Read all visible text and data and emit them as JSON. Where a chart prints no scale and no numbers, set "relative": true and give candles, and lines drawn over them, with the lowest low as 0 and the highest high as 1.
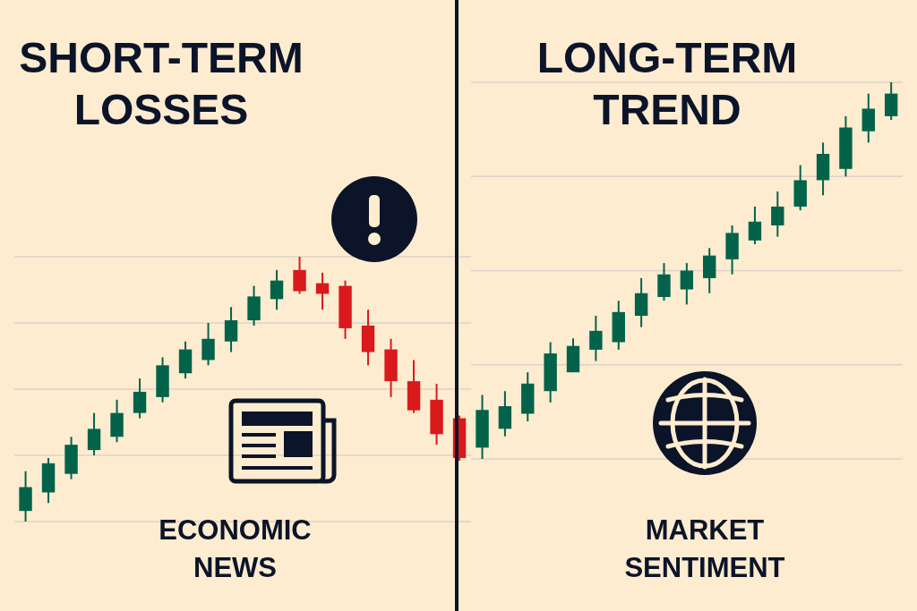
{
  "chart_data": [
    {
      "type": "candlestick",
      "title": "SHORT-TERM LOSSES",
      "relative": true,
      "grid": true,
      "annotations": [
        "ECONOMIC NEWS"
      ],
      "categories": [
        null,
        null,
        null,
        null,
        null,
        null,
        null,
        null,
        null,
        null,
        null,
        null,
        null,
        null,
        null,
        null,
        null,
        null,
        null,
        null
      ],
      "ohlc": [
        [
          0.04,
          0.19,
          0,
          0.13
        ],
        [
          0.11,
          0.24,
          0.07,
          0.22
        ],
        [
          0.18,
          0.32,
          0.16,
          0.29
        ],
        [
          0.27,
          0.41,
          0.25,
          0.35
        ],
        [
          0.32,
          0.46,
          0.3,
          0.41
        ],
        [
          0.41,
          0.54,
          0.39,
          0.49
        ],
        [
          0.47,
          0.62,
          0.45,
          0.59
        ],
        [
          0.56,
          0.68,
          0.54,
          0.65
        ],
        [
          0.61,
          0.75,
          0.59,
          0.69
        ],
        [
          0.68,
          0.81,
          0.64,
          0.76
        ],
        [
          0.76,
          0.89,
          0.74,
          0.85
        ],
        [
          0.84,
          0.95,
          0.8,
          0.91
        ],
        [
          0.95,
          1,
          0.86,
          0.87
        ],
        [
          0.9,
          0.94,
          0.8,
          0.86
        ],
        [
          0.89,
          0.91,
          0.69,
          0.73
        ],
        [
          0.74,
          0.8,
          0.59,
          0.64
        ],
        [
          0.65,
          0.69,
          0.47,
          0.53
        ],
        [
          0.53,
          0.61,
          0.41,
          0.42
        ],
        [
          0.46,
          0.52,
          0.29,
          0.33
        ],
        [
          0.39,
          0.4,
          0.23,
          0.24
        ]
      ],
      "colors": [
        "#02634a",
        "#02634a",
        "#02634a",
        "#02634a",
        "#02634a",
        "#02634a",
        "#02634a",
        "#02634a",
        "#02634a",
        "#02634a",
        "#02634a",
        "#02634a",
        "#d9191c",
        "#d9191c",
        "#d9191c",
        "#d9191c",
        "#d9191c",
        "#d9191c",
        "#d9191c",
        "#d9191c"
      ]
    },
    {
      "type": "candlestick",
      "title": "LONG-TERM TREND",
      "relative": true,
      "grid": true,
      "annotations": [
        "MARKET SENTIMENT"
      ],
      "categories": [
        null,
        null,
        null,
        null,
        null,
        null,
        null,
        null,
        null,
        null,
        null,
        null,
        null,
        null,
        null,
        null,
        null,
        null,
        null
      ],
      "ohlc": [
        [
          0.03,
          0.17,
          0,
          0.13
        ],
        [
          0.08,
          0.18,
          0.06,
          0.14
        ],
        [
          0.12,
          0.23,
          0.1,
          0.2
        ],
        [
          0.18,
          0.31,
          0.15,
          0.28
        ],
        [
          0.23,
          0.32,
          0.23,
          0.3
        ],
        [
          0.29,
          0.38,
          0.26,
          0.34
        ],
        [
          0.31,
          0.42,
          0.29,
          0.39
        ],
        [
          0.38,
          0.48,
          0.35,
          0.44
        ],
        [
          0.43,
          0.52,
          0.42,
          0.49
        ],
        [
          0.45,
          0.52,
          0.41,
          0.5
        ],
        [
          0.48,
          0.56,
          0.44,
          0.54
        ],
        [
          0.53,
          0.62,
          0.49,
          0.6
        ],
        [
          0.58,
          0.67,
          0.57,
          0.63
        ],
        [
          0.62,
          0.71,
          0.59,
          0.67
        ],
        [
          0.67,
          0.78,
          0.66,
          0.74
        ],
        [
          0.74,
          0.84,
          0.7,
          0.81
        ],
        [
          0.77,
          0.91,
          0.75,
          0.88
        ],
        [
          0.87,
          0.97,
          0.84,
          0.93
        ],
        [
          0.91,
          1,
          0.9,
          0.97
        ]
      ],
      "colors": [
        "#02634a",
        "#02634a",
        "#02634a",
        "#02634a",
        "#02634a",
        "#02634a",
        "#02634a",
        "#02634a",
        "#02634a",
        "#02634a",
        "#02634a",
        "#02634a",
        "#02634a",
        "#02634a",
        "#02634a",
        "#02634a",
        "#02634a",
        "#02634a",
        "#02634a"
      ]
    }
  ]
}
